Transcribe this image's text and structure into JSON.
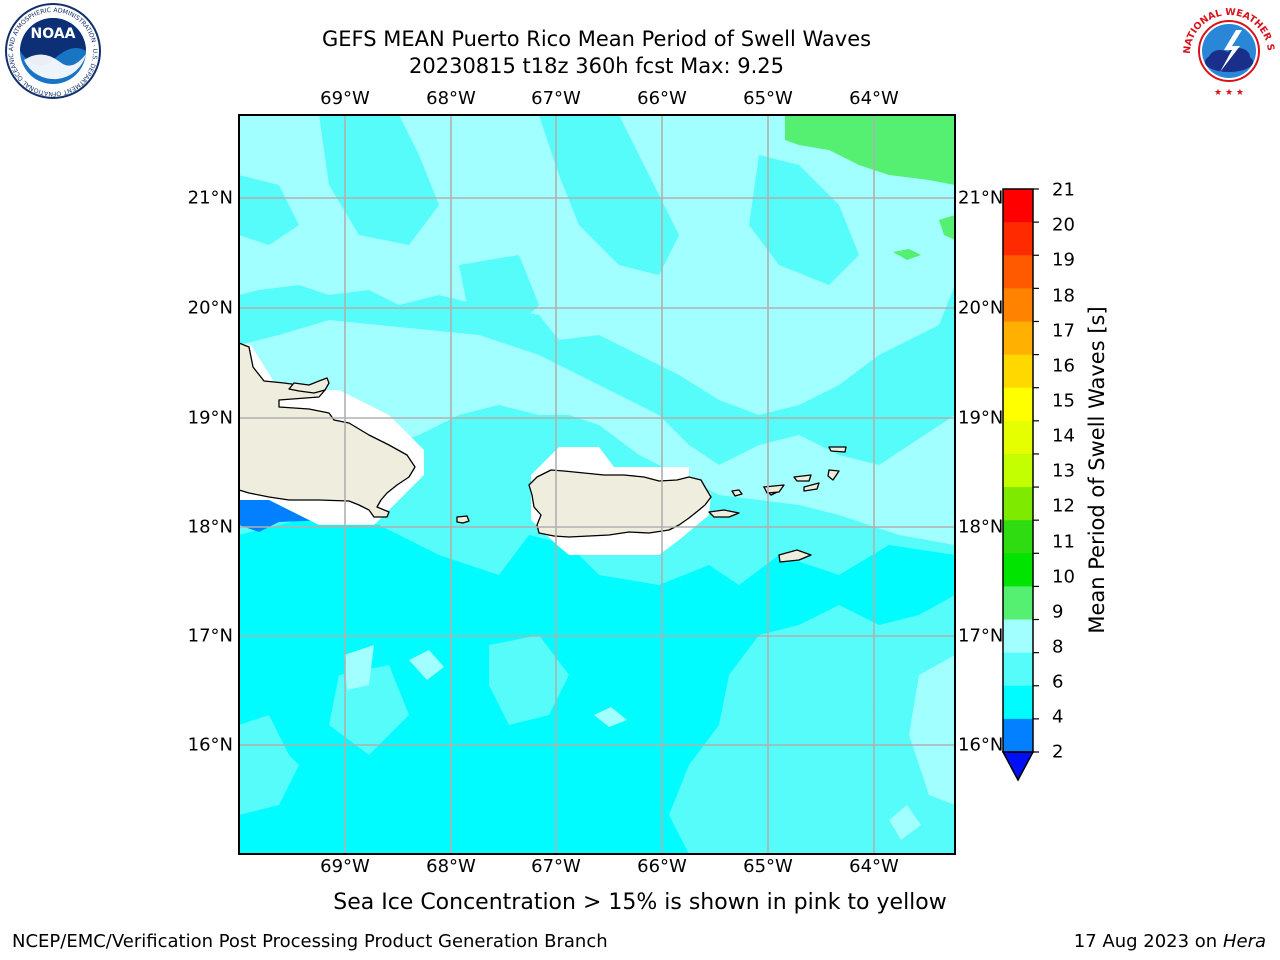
{
  "header": {
    "title_line1": "GEFS MEAN Puerto Rico Mean Period of Swell Waves",
    "title_line2": "20230815 t18z 360h fcst   Max: 9.25"
  },
  "axes": {
    "lon_labels": [
      "69°W",
      "68°W",
      "67°W",
      "66°W",
      "65°W",
      "64°W"
    ],
    "lat_labels": [
      "21°N",
      "20°N",
      "19°N",
      "18°N",
      "17°N",
      "16°N"
    ]
  },
  "colorbar": {
    "label": "Mean Period of Swell Waves [s]",
    "ticks": [
      "21",
      "20",
      "19",
      "18",
      "17",
      "16",
      "15",
      "14",
      "13",
      "12",
      "11",
      "10",
      "9",
      "8",
      "6",
      "4",
      "2"
    ],
    "colors": [
      "#ff0000",
      "#ff2a00",
      "#ff5a00",
      "#ff8200",
      "#ffb000",
      "#ffd800",
      "#ffff00",
      "#e6ff00",
      "#c4ff00",
      "#7dea00",
      "#2fdc12",
      "#00e400",
      "#55ef72",
      "#a2ffff",
      "#55fcfa",
      "#00fcff",
      "#0380ff",
      "#0010f5"
    ]
  },
  "map": {
    "colors": {
      "swell_9_plus": "#55ef72",
      "swell_8_9": "#a2ffff",
      "swell_6_8": "#55fcfa",
      "swell_4_6": "#00fcff",
      "swell_2_4": "#0380ff",
      "land": "#efedde",
      "grid": "#b0b0b0"
    }
  },
  "caption": "Sea Ice Concentration > 15% is shown in pink to yellow",
  "footer": {
    "left": "NCEP/EMC/Verification Post Processing Product Generation Branch",
    "right_date": "17 Aug 2023 on",
    "right_host": "Hera"
  },
  "logos": {
    "noaa_text": "NOAA",
    "noaa_ring": "NATIONAL OCEANIC AND ATMOSPHERIC ADMINISTRATION · U.S. DEPARTMENT OF COMMERCE",
    "nws_ring": "NATIONAL WEATHER SERVICE"
  }
}
